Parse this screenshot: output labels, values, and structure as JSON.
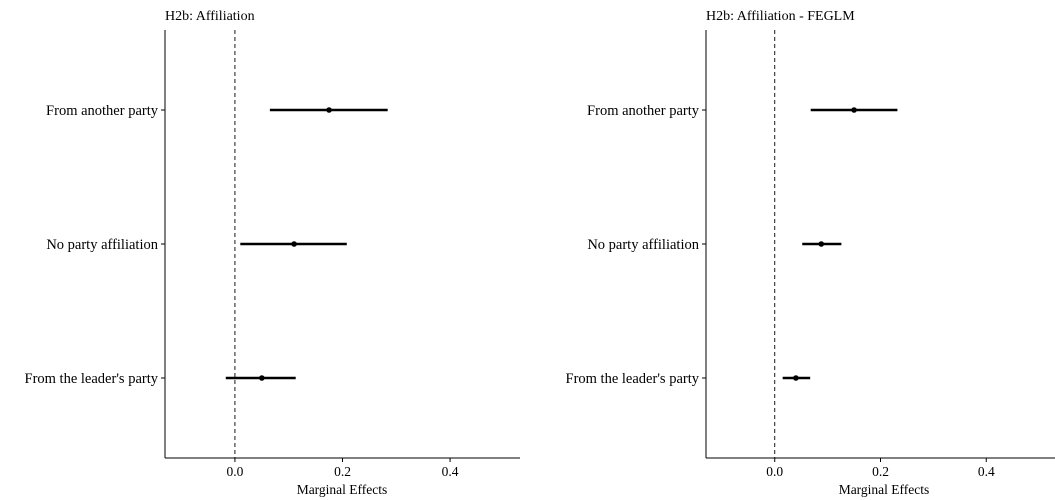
{
  "chart_data": [
    {
      "type": "forest",
      "title": "H2b: Affiliation",
      "xlabel": "Marginal Effects",
      "ylabel": "",
      "xlim": [
        -0.13,
        0.53
      ],
      "xticks": [
        "0.0",
        "0.2",
        "0.4"
      ],
      "xtick_values": [
        0.0,
        0.2,
        0.4
      ],
      "reference_line": 0,
      "grid": false,
      "categories": [
        "From another party",
        "No party affiliation",
        "From the leader's party"
      ],
      "estimates": [
        0.175,
        0.11,
        0.05
      ],
      "lower": [
        0.065,
        0.01,
        -0.017
      ],
      "upper": [
        0.284,
        0.208,
        0.113
      ]
    },
    {
      "type": "forest",
      "title": "H2b: Affiliation - FEGLM",
      "xlabel": "Marginal Effects",
      "ylabel": "",
      "xlim": [
        -0.13,
        0.53
      ],
      "xticks": [
        "0.0",
        "0.2",
        "0.4"
      ],
      "xtick_values": [
        0.0,
        0.2,
        0.4
      ],
      "reference_line": 0,
      "grid": false,
      "categories": [
        "From another party",
        "No party affiliation",
        "From the leader's party"
      ],
      "estimates": [
        0.15,
        0.088,
        0.04
      ],
      "lower": [
        0.068,
        0.052,
        0.015
      ],
      "upper": [
        0.232,
        0.126,
        0.067
      ]
    }
  ]
}
